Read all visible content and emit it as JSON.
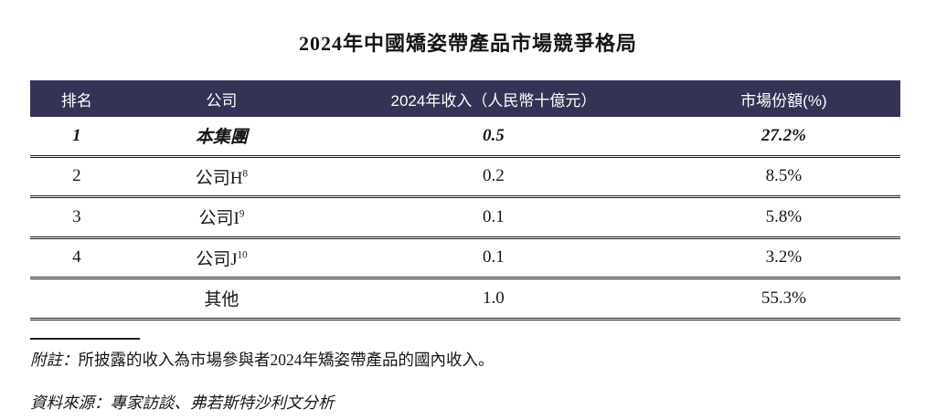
{
  "title": "2024年中國矯姿帶產品市場競爭格局",
  "colors": {
    "header_bg": "#343356",
    "header_text": "#ffffff",
    "body_text": "#161616",
    "rule": "#1d1d1d"
  },
  "table": {
    "headers": {
      "rank": "排名",
      "company": "公司",
      "revenue": "2024年收入（人民幣十億元）",
      "share": "市場份額(%)"
    },
    "rows": [
      {
        "rank": "1",
        "company": "本集團",
        "company_sup": "",
        "revenue": "0.5",
        "share": "27.2%"
      },
      {
        "rank": "2",
        "company": "公司H",
        "company_sup": "8",
        "revenue": "0.2",
        "share": "8.5%"
      },
      {
        "rank": "3",
        "company": "公司I",
        "company_sup": "9",
        "revenue": "0.1",
        "share": "5.8%"
      },
      {
        "rank": "4",
        "company": "公司J",
        "company_sup": "10",
        "revenue": "0.1",
        "share": "3.2%"
      },
      {
        "rank": "",
        "company": "其他",
        "company_sup": "",
        "revenue": "1.0",
        "share": "55.3%"
      }
    ]
  },
  "footnote": {
    "label": "附註：",
    "text": "所披露的收入為市場參與者2024年矯姿帶產品的國內收入。"
  },
  "source": "資料來源：專家訪談、弗若斯特沙利文分析"
}
